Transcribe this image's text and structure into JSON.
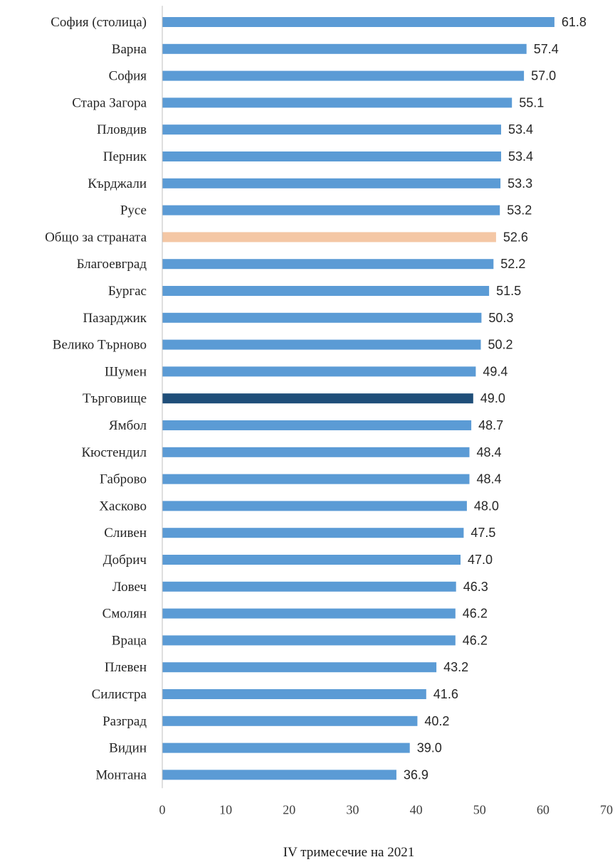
{
  "chart_data": {
    "type": "bar",
    "orientation": "horizontal",
    "title": "",
    "xlabel": "IV тримесечие на 2021",
    "ylabel": "",
    "xlim": [
      0,
      70
    ],
    "xticks": [
      "0",
      "10",
      "20",
      "30",
      "40",
      "50",
      "60",
      "70"
    ],
    "grid": false,
    "legend": "none",
    "categories": [
      "София (столица)",
      "Варна",
      "София",
      "Стара Загора",
      "Пловдив",
      "Перник",
      "Кърджали",
      "Русе",
      "Общо за страната",
      "Благоевград",
      "Бургас",
      "Пазарджик",
      "Велико Търново",
      "Шумен",
      "Търговище",
      "Ямбол",
      "Кюстендил",
      "Габрово",
      "Хасково",
      "Сливен",
      "Добрич",
      "Ловеч",
      "Смолян",
      "Враца",
      "Плевен",
      "Силистра",
      "Разград",
      "Видин",
      "Монтана"
    ],
    "values": [
      61.8,
      57.4,
      57.0,
      55.1,
      53.4,
      53.4,
      53.3,
      53.2,
      52.6,
      52.2,
      51.5,
      50.3,
      50.2,
      49.4,
      49.0,
      48.7,
      48.4,
      48.4,
      48.0,
      47.5,
      47.0,
      46.3,
      46.2,
      46.2,
      43.2,
      41.6,
      40.2,
      39.0,
      36.9
    ],
    "value_labels": [
      "61.8",
      "57.4",
      "57.0",
      "55.1",
      "53.4",
      "53.4",
      "53.3",
      "53.2",
      "52.6",
      "52.2",
      "51.5",
      "50.3",
      "50.2",
      "49.4",
      "49.0",
      "48.7",
      "48.4",
      "48.4",
      "48.0",
      "47.5",
      "47.0",
      "46.3",
      "46.2",
      "46.2",
      "43.2",
      "41.6",
      "40.2",
      "39.0",
      "36.9"
    ],
    "colors": {
      "default": "#5b9bd5",
      "Общо за страната": "#f4c7a5",
      "Търговище": "#1f4e79",
      "axis": "#bfbfbf"
    }
  }
}
